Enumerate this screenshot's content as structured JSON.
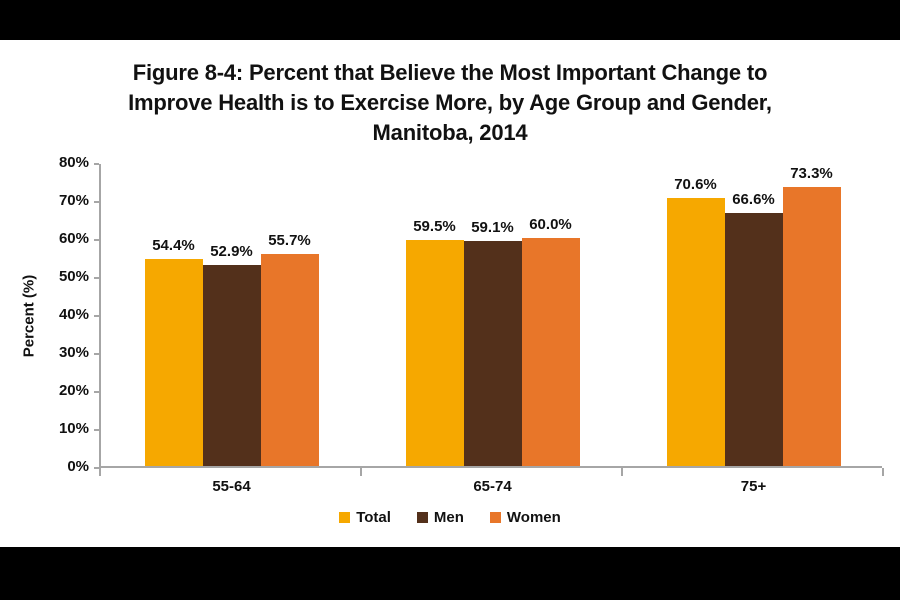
{
  "letterbox_color": "#000000",
  "background_color": "#ffffff",
  "text_color": "#111111",
  "axis_color": "#a6a6a6",
  "title": {
    "line1": "Figure 8-4: Percent that Believe the Most Important Change to",
    "line2": "Improve Health is to Exercise More, by Age Group and Gender,",
    "line3": "Manitoba, 2014"
  },
  "chart_data": {
    "type": "bar",
    "title": "Figure 8-4: Percent that Believe the Most Important Change to Improve Health is to Exercise More, by Age Group and Gender, Manitoba, 2014",
    "categories": [
      "55-64",
      "65-74",
      "75+"
    ],
    "series": [
      {
        "name": "Total",
        "color": "#F6A800",
        "values": [
          54.4,
          59.5,
          70.6
        ]
      },
      {
        "name": "Men",
        "color": "#53301B",
        "values": [
          52.9,
          59.1,
          66.6
        ]
      },
      {
        "name": "Women",
        "color": "#E87629",
        "values": [
          55.7,
          60.0,
          73.3
        ]
      }
    ],
    "value_labels": [
      [
        "54.4%",
        "59.5%",
        "70.6%"
      ],
      [
        "52.9%",
        "59.1%",
        "66.6%"
      ],
      [
        "55.7%",
        "60.0%",
        "73.3%"
      ]
    ],
    "xlabel": "",
    "ylabel": "Percent (%)",
    "ylim": [
      0,
      80
    ],
    "ytick_step": 10,
    "ytick_labels": [
      "0%",
      "10%",
      "20%",
      "30%",
      "40%",
      "50%",
      "60%",
      "70%",
      "80%"
    ],
    "grid": false,
    "legend_position": "bottom"
  }
}
